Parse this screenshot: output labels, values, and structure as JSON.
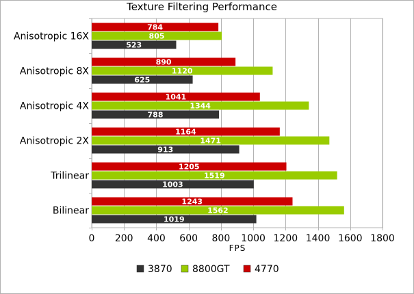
{
  "chart_data": {
    "type": "bar",
    "orientation": "horizontal",
    "title": "Texture Filtering Performance",
    "xlabel": "FPS",
    "ylabel": "",
    "categories": [
      "Anisotropic 16X",
      "Anisotropic 8X",
      "Anisotropic 4X",
      "Anisotropic 2X",
      "Trilinear",
      "Bilinear"
    ],
    "series": [
      {
        "name": "4770",
        "color": "#cc0000",
        "values": [
          784,
          890,
          1041,
          1164,
          1205,
          1243
        ]
      },
      {
        "name": "8800GT",
        "color": "#99cc00",
        "values": [
          805,
          1120,
          1344,
          1471,
          1519,
          1562
        ]
      },
      {
        "name": "3870",
        "color": "#333333",
        "values": [
          523,
          625,
          788,
          913,
          1003,
          1019
        ]
      }
    ],
    "legend_order": [
      "3870",
      "8800GT",
      "4770"
    ],
    "legend_position": "bottom",
    "xlim": [
      0,
      1800
    ],
    "xticks": [
      0,
      200,
      400,
      600,
      800,
      1000,
      1200,
      1400,
      1600,
      1800
    ],
    "grid": true,
    "data_labels": true
  }
}
